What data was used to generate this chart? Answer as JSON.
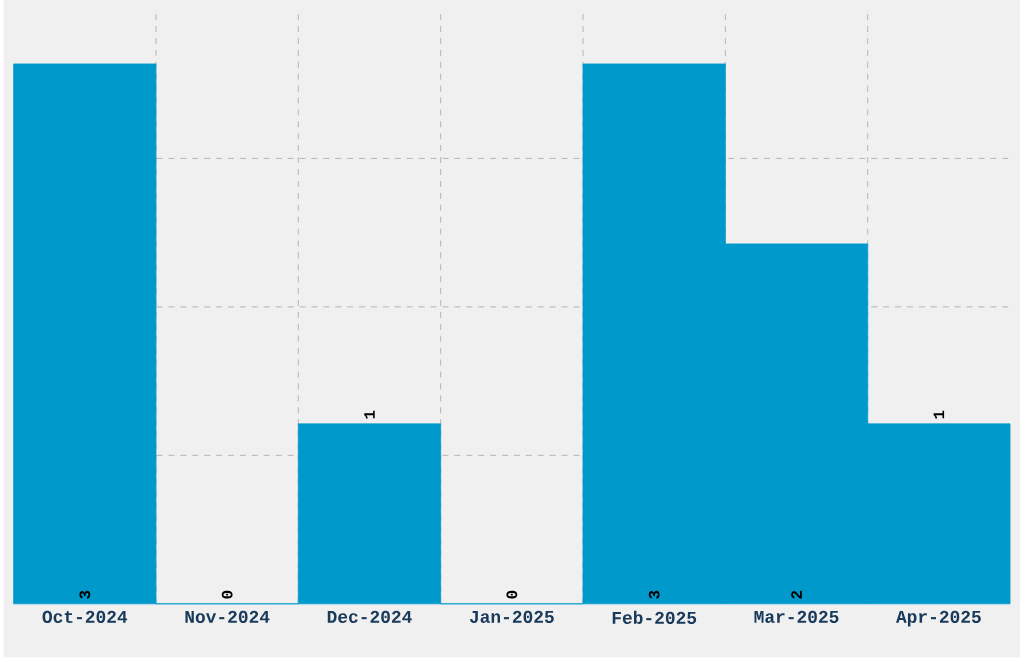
{
  "chart_data": {
    "type": "bar",
    "categories": [
      "Oct-2024",
      "Nov-2024",
      "Dec-2024",
      "Jan-2025",
      "Feb-2025",
      "Mar-2025",
      "Apr-2025"
    ],
    "values": [
      3,
      0,
      1,
      0,
      3,
      2,
      1
    ],
    "color": "#0099cc",
    "ylim": [
      0,
      3.3
    ],
    "yticks": [
      {
        "value": 0.825,
        "label": null
      },
      {
        "value": 1.65,
        "label": null
      },
      {
        "value": 2.475,
        "label": null
      }
    ],
    "grid": true,
    "data_labels": true,
    "tick_labels": "x"
  }
}
